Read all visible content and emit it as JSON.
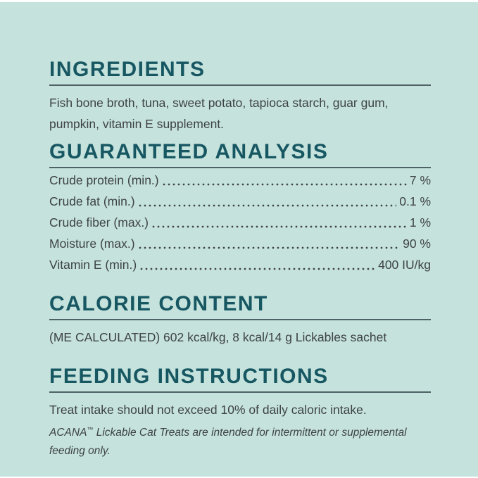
{
  "label": {
    "colors": {
      "background": "#c5e2dd",
      "heading": "#175762",
      "body_text": "#3e4344",
      "rule": "#4e6164"
    },
    "sections": {
      "ingredients": {
        "title": "INGREDIENTS",
        "body": "Fish bone broth, tuna, sweet potato, tapioca starch, guar gum, pumpkin, vitamin E supplement."
      },
      "guaranteed_analysis": {
        "title": "GUARANTEED ANALYSIS",
        "rows": [
          {
            "label": "Crude protein (min.)",
            "value": "7 %"
          },
          {
            "label": "Crude fat (min.)",
            "value": "0.1 %"
          },
          {
            "label": "Crude fiber (max.)",
            "value": "1 %"
          },
          {
            "label": "Moisture (max.)",
            "value": "90 %"
          },
          {
            "label": "Vitamin E (min.)",
            "value": "400 IU/kg"
          }
        ]
      },
      "calorie_content": {
        "title": "CALORIE CONTENT",
        "body": "(ME CALCULATED) 602 kcal/kg, 8 kcal/14 g Lickables sachet"
      },
      "feeding_instructions": {
        "title": "FEEDING INSTRUCTIONS",
        "body": "Treat intake should not exceed 10% of daily caloric intake.",
        "note_brand": "ACANA",
        "note_trademark": "™",
        "note_rest": " Lickable Cat Treats are intended for intermittent or supplemental feeding only."
      }
    }
  }
}
